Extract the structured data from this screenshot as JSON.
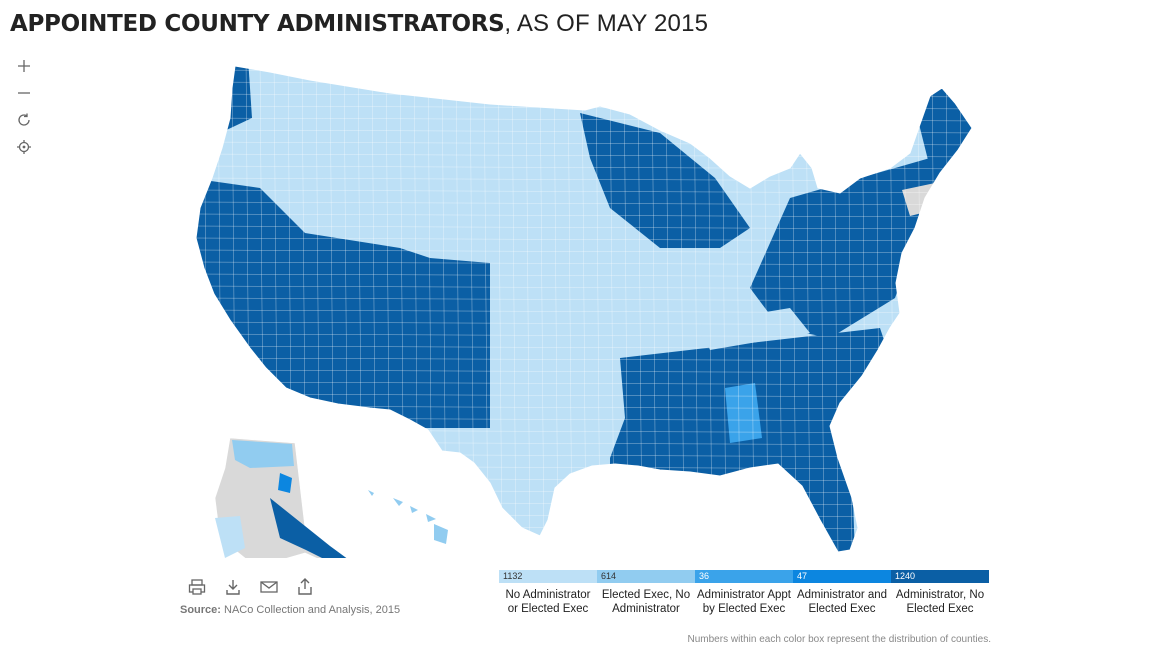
{
  "header": {
    "title_bold": "APPOINTED COUNTY ADMINISTRATORS",
    "title_rest": ", AS OF MAY 2015"
  },
  "controls": [
    {
      "name": "zoom-in-button",
      "icon": "plus-icon"
    },
    {
      "name": "zoom-out-button",
      "icon": "minus-icon"
    },
    {
      "name": "reset-button",
      "icon": "refresh-icon"
    },
    {
      "name": "locate-button",
      "icon": "crosshair-icon"
    }
  ],
  "toolbar": [
    {
      "name": "print-button",
      "icon": "print-icon"
    },
    {
      "name": "download-button",
      "icon": "download-icon"
    },
    {
      "name": "email-button",
      "icon": "email-icon"
    },
    {
      "name": "share-button",
      "icon": "share-icon"
    }
  ],
  "source": {
    "label": "Source:",
    "text": " NACo Collection and Analysis, 2015"
  },
  "legend": [
    {
      "count": "1132",
      "label": "No Administrator or Elected Exec",
      "color": "#bde0f6",
      "text_color": "#333333"
    },
    {
      "count": "614",
      "label": "Elected Exec, No Administrator",
      "color": "#91ccf0",
      "text_color": "#333333"
    },
    {
      "count": "36",
      "label": "Administrator Appt by Elected Exec",
      "color": "#3aa3ea",
      "text_color": "#ffffff"
    },
    {
      "count": "47",
      "label": "Administrator and Elected Exec",
      "color": "#0c86e0",
      "text_color": "#ffffff"
    },
    {
      "count": "1240",
      "label": "Administrator, No Elected Exec",
      "color": "#0b5fa5",
      "text_color": "#ffffff"
    }
  ],
  "note": "Numbers within each color box represent the distribution of counties.",
  "map_colors": {
    "no_admin": "#bde0f6",
    "elected_exec": "#91ccf0",
    "appt_by_exec": "#3aa3ea",
    "admin_and_exec": "#0c86e0",
    "admin_no_exec": "#0b5fa5",
    "no_data": "#d9d9d9"
  }
}
